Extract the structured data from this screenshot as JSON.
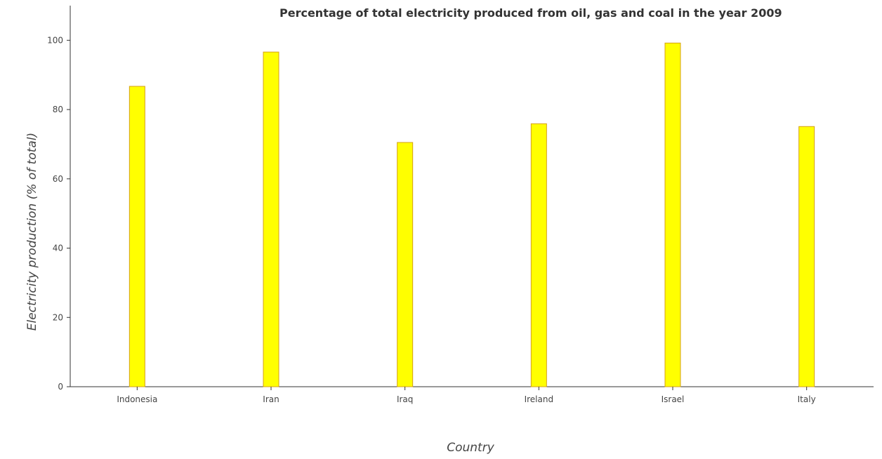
{
  "chart_data": {
    "type": "bar",
    "title": "Percentage of total electricity produced from oil, gas and coal in the year 2009",
    "xlabel": "Country",
    "ylabel": "Electricity production (% of total)",
    "categories": [
      "Indonesia",
      "Iran",
      "Iraq",
      "Ireland",
      "Israel",
      "Italy"
    ],
    "values": [
      86.7,
      96.6,
      70.5,
      75.9,
      99.2,
      75.1
    ],
    "ylim": [
      0,
      110
    ],
    "yticks": [
      "0",
      "20",
      "40",
      "60",
      "80",
      "100"
    ],
    "bar_color": "#ffff00",
    "bar_edge_color": "#d4a017",
    "grid": false,
    "legend": "none"
  }
}
